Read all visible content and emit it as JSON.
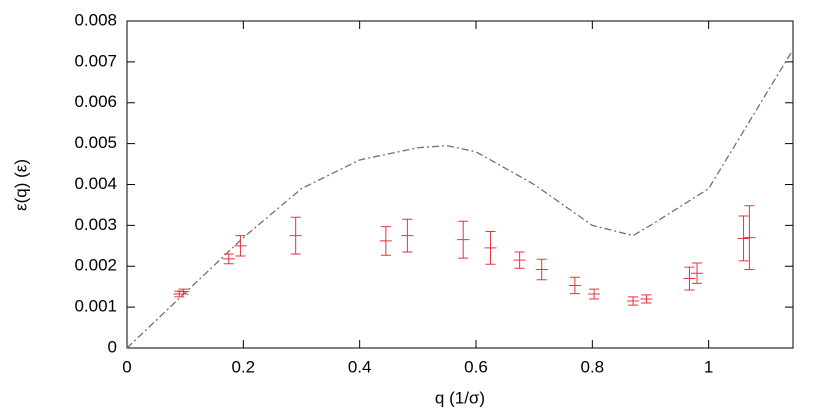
{
  "chart_data": {
    "type": "scatter",
    "xlabel": "q  (1/σ)",
    "ylabel": "ε(q)  (ε)",
    "xlim": [
      0,
      1.145
    ],
    "ylim": [
      0,
      0.008
    ],
    "xticks": [
      0,
      0.2,
      0.4,
      0.6,
      0.8,
      1
    ],
    "yticks": [
      0,
      0.001,
      0.002,
      0.003,
      0.004,
      0.005,
      0.006,
      0.007,
      0.008
    ],
    "line": {
      "color": "#707070",
      "x": [
        0,
        0.1,
        0.2,
        0.3,
        0.4,
        0.5,
        0.55,
        0.6,
        0.7,
        0.8,
        0.87,
        0.9,
        1.0,
        1.145
      ],
      "values": [
        0,
        0.00135,
        0.0027,
        0.0039,
        0.0046,
        0.0049,
        0.00495,
        0.0048,
        0.004,
        0.003,
        0.00275,
        0.003,
        0.0039,
        0.0073
      ]
    },
    "points": {
      "color": "#e8323c",
      "x": [
        0.09,
        0.097,
        0.175,
        0.195,
        0.29,
        0.445,
        0.482,
        0.578,
        0.625,
        0.675,
        0.713,
        0.77,
        0.803,
        0.87,
        0.893,
        0.967,
        0.98,
        1.06,
        1.07
      ],
      "values": [
        0.00132,
        0.00138,
        0.00218,
        0.0025,
        0.00275,
        0.00262,
        0.00275,
        0.00265,
        0.00245,
        0.00215,
        0.00192,
        0.00153,
        0.00132,
        0.00115,
        0.0012,
        0.0017,
        0.00183,
        0.00268,
        0.0027
      ],
      "errors": [
        7e-05,
        6e-05,
        0.00012,
        0.00025,
        0.00045,
        0.00035,
        0.0004,
        0.00045,
        0.0004,
        0.0002,
        0.00025,
        0.0002,
        0.00012,
        0.0001,
        0.0001,
        0.00028,
        0.00025,
        0.00055,
        0.00078
      ]
    }
  }
}
